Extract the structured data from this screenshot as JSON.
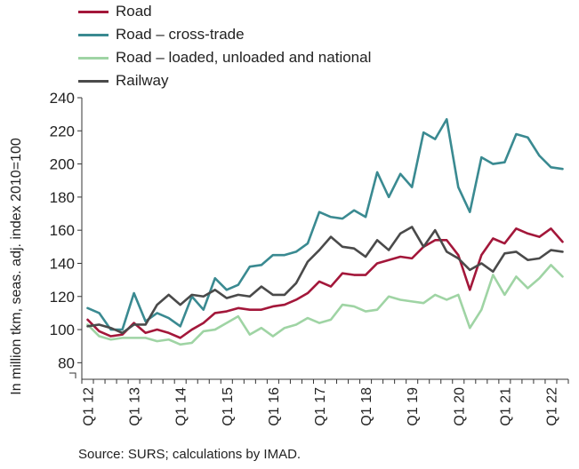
{
  "chart_data": {
    "type": "line",
    "ylabel": "In million tkm, seas. adj. index 2010=100",
    "ylim": [
      70,
      240
    ],
    "yticks": [
      80,
      100,
      120,
      140,
      160,
      180,
      200,
      220,
      240
    ],
    "xticks": [
      "Q1 12",
      "Q1 13",
      "Q1 14",
      "Q1 15",
      "Q1 16",
      "Q1 17",
      "Q1 18",
      "Q1 19",
      "Q1 20",
      "Q1 21",
      "Q1 22"
    ],
    "x_start": "Q1 12",
    "x_end": "Q3 22",
    "grid": false,
    "legend_position": "top-left",
    "series": [
      {
        "name": "Road",
        "color": "#a3173a",
        "values": [
          106,
          99,
          96,
          97,
          104,
          98,
          100,
          98,
          95,
          100,
          104,
          110,
          111,
          113,
          112,
          112,
          114,
          115,
          118,
          122,
          129,
          126,
          134,
          133,
          133,
          140,
          142,
          144,
          143,
          150,
          154,
          154,
          145,
          124,
          145,
          155,
          152,
          161,
          158,
          156,
          161,
          153
        ]
      },
      {
        "name": "Road – cross-trade",
        "color": "#3a8a91",
        "values": [
          113,
          110,
          100,
          100,
          122,
          105,
          110,
          107,
          102,
          120,
          112,
          131,
          124,
          127,
          138,
          139,
          145,
          145,
          147,
          152,
          171,
          168,
          167,
          172,
          168,
          195,
          180,
          194,
          186,
          219,
          215,
          227,
          186,
          171,
          204,
          200,
          201,
          218,
          216,
          205,
          198,
          197
        ]
      },
      {
        "name": "Road – loaded, unloaded and national",
        "color": "#9fd4a4",
        "values": [
          103,
          96,
          94,
          95,
          95,
          95,
          93,
          94,
          91,
          92,
          99,
          100,
          104,
          108,
          97,
          101,
          96,
          101,
          103,
          107,
          104,
          106,
          115,
          114,
          111,
          112,
          120,
          118,
          117,
          116,
          121,
          118,
          121,
          101,
          112,
          133,
          121,
          132,
          125,
          131,
          139,
          132
        ]
      },
      {
        "name": "Railway",
        "color": "#4a4a4a",
        "values": [
          102,
          103,
          101,
          98,
          103,
          103,
          115,
          121,
          115,
          121,
          120,
          124,
          119,
          121,
          120,
          126,
          121,
          121,
          128,
          141,
          148,
          156,
          150,
          149,
          144,
          154,
          148,
          158,
          162,
          150,
          160,
          147,
          143,
          136,
          140,
          135,
          146,
          147,
          142,
          143,
          148,
          147
        ]
      }
    ],
    "source": "Source: SURS; calculations by IMAD."
  }
}
